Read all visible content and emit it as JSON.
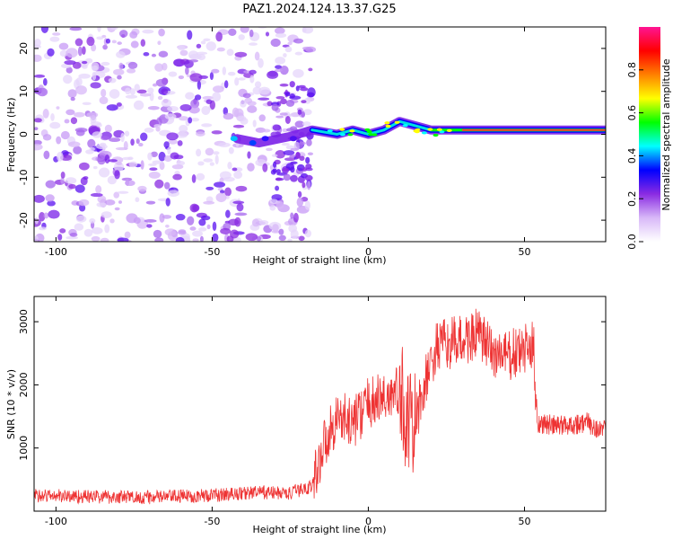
{
  "figure_title": "PAZ1.2024.124.13.37.G25",
  "chart_data": [
    {
      "type": "heatmap",
      "xlabel": "Height of straight line (km)",
      "ylabel": "Frequency (Hz)",
      "xlim": [
        -107,
        76
      ],
      "ylim": [
        -25,
        25
      ],
      "xticks": [
        -100,
        -50,
        0,
        50
      ],
      "yticks": [
        -20,
        -10,
        0,
        10,
        20
      ],
      "colorbar": {
        "label": "Normalized spectral amplitude",
        "range": [
          0,
          1
        ],
        "ticks": [
          0.0,
          0.2,
          0.4,
          0.6,
          0.8
        ],
        "colormap": [
          "#ffffff",
          "#d8b8f8",
          "#8a2be2",
          "#0000ff",
          "#00ffff",
          "#00ff00",
          "#ffff00",
          "#ff8000",
          "#ff0000",
          "#ff1493"
        ]
      },
      "ridge": [
        {
          "x": -42,
          "y": -1
        },
        {
          "x": -35,
          "y": -2
        },
        {
          "x": -25,
          "y": -0.5
        },
        {
          "x": -18,
          "y": 1
        },
        {
          "x": -10,
          "y": 0
        },
        {
          "x": -5,
          "y": 1
        },
        {
          "x": 0,
          "y": 0
        },
        {
          "x": 5,
          "y": 1
        },
        {
          "x": 10,
          "y": 3
        },
        {
          "x": 15,
          "y": 2
        },
        {
          "x": 20,
          "y": 1
        },
        {
          "x": 30,
          "y": 1
        },
        {
          "x": 40,
          "y": 1
        },
        {
          "x": 50,
          "y": 1
        },
        {
          "x": 60,
          "y": 1
        },
        {
          "x": 70,
          "y": 1
        },
        {
          "x": 76,
          "y": 1
        }
      ]
    },
    {
      "type": "line",
      "xlabel": "Height of straight line (km)",
      "ylabel": "SNR (10 * v/v)",
      "xlim": [
        -107,
        76
      ],
      "ylim": [
        0,
        3400
      ],
      "xticks": [
        -100,
        -50,
        0,
        50
      ],
      "yticks": [
        1000,
        2000,
        3000
      ],
      "color": "#ee3333",
      "series": [
        {
          "values_trend": [
            {
              "x": -107,
              "y": 250
            },
            {
              "x": -90,
              "y": 230
            },
            {
              "x": -70,
              "y": 220
            },
            {
              "x": -50,
              "y": 250
            },
            {
              "x": -35,
              "y": 300
            },
            {
              "x": -25,
              "y": 280
            },
            {
              "x": -18,
              "y": 400
            },
            {
              "x": -14,
              "y": 1100
            },
            {
              "x": -10,
              "y": 1500
            },
            {
              "x": -5,
              "y": 1400
            },
            {
              "x": 0,
              "y": 1700
            },
            {
              "x": 5,
              "y": 1800
            },
            {
              "x": 10,
              "y": 1900
            },
            {
              "x": 14,
              "y": 1200
            },
            {
              "x": 18,
              "y": 2000
            },
            {
              "x": 22,
              "y": 2600
            },
            {
              "x": 30,
              "y": 2700
            },
            {
              "x": 35,
              "y": 2800
            },
            {
              "x": 40,
              "y": 2500
            },
            {
              "x": 45,
              "y": 2450
            },
            {
              "x": 50,
              "y": 2550
            },
            {
              "x": 53,
              "y": 2600
            },
            {
              "x": 54,
              "y": 1400
            },
            {
              "x": 60,
              "y": 1350
            },
            {
              "x": 70,
              "y": 1400
            },
            {
              "x": 76,
              "y": 1250
            }
          ]
        }
      ]
    }
  ]
}
